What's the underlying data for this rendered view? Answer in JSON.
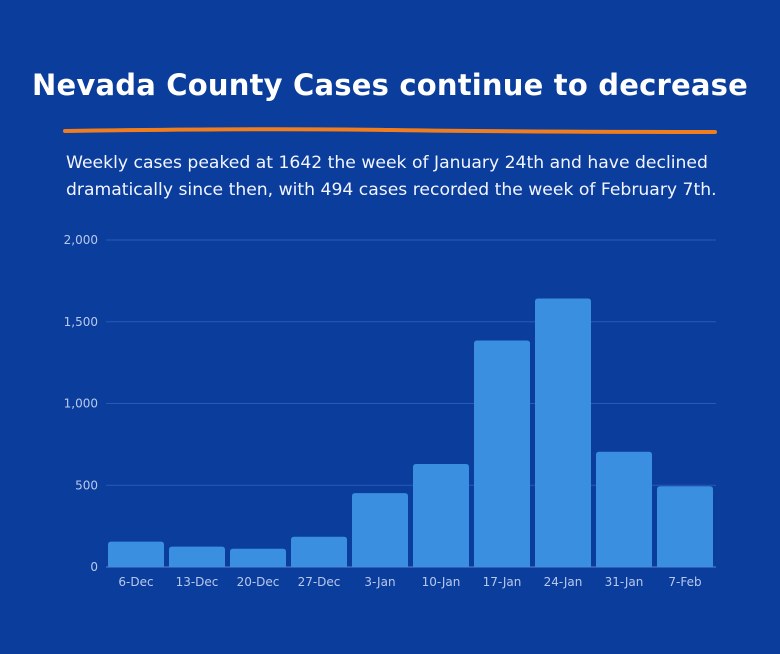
{
  "header": {
    "title": "Nevada County Cases continue to decrease",
    "subtitle": "Weekly cases peaked at 1642 the week of January 24th and have declined dramatically since then, with 494 cases recorded the week of February 7th."
  },
  "colors": {
    "background": "#0a3d9c",
    "bar": "#3a8fe0",
    "accent_rule": "#f07e1f",
    "gridline": "#2a5ab8"
  },
  "chart_data": {
    "type": "bar",
    "categories": [
      "6-Dec",
      "13-Dec",
      "20-Dec",
      "27-Dec",
      "3-Jan",
      "10-Jan",
      "17-Jan",
      "24-Jan",
      "31-Jan",
      "7-Feb"
    ],
    "values": [
      155,
      125,
      112,
      185,
      452,
      630,
      1385,
      1642,
      705,
      494
    ],
    "ylim": [
      0,
      2000
    ],
    "yticks": [
      0,
      500,
      1000,
      1500,
      2000
    ],
    "ytick_labels": [
      "0",
      "500",
      "1,000",
      "1,500",
      "2,000"
    ],
    "grid": true,
    "xlabel": "",
    "ylabel": ""
  }
}
